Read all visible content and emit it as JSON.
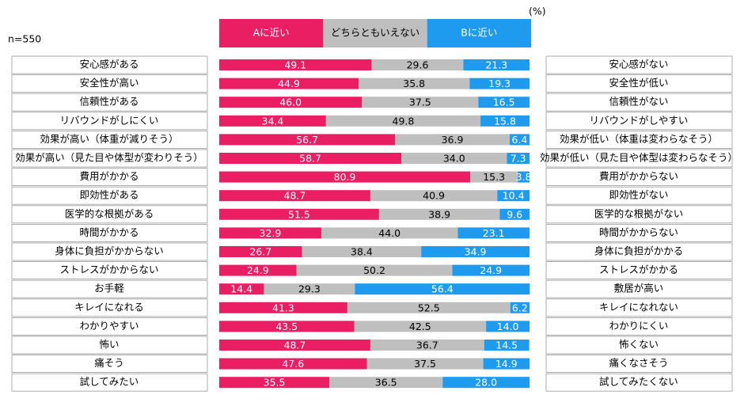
{
  "chart_data": {
    "type": "bar",
    "orientation": "horizontal",
    "stacked": true,
    "note": "(%)",
    "sample": "n=550",
    "categories": [
      "安心感がある",
      "安全性が高い",
      "信頼性がある",
      "リバウンドがしにくい",
      "効果が高い（体重が減りそう）",
      "効果が高い（見た目や体型が変わりそう）",
      "費用がかかる",
      "即効性がある",
      "医学的な根拠がある",
      "時間がかかる",
      "身体に負担がかからない",
      "ストレスがかからない",
      "お手軽",
      "キレイになれる",
      "わかりやすい",
      "怖い",
      "痛そう",
      "試してみたい"
    ],
    "categories_right": [
      "安心感がない",
      "安全性が低い",
      "信頼性がない",
      "リバウンドがしやすい",
      "効果が低い（体重は変わらなそう）",
      "効果が低い（見た目や体型は変わらなそう）",
      "費用がかからない",
      "即効性がない",
      "医学的な根拠がない",
      "時間がかからない",
      "身体に負担がかかる",
      "ストレスがかかる",
      "敷居が高い",
      "キレイになれない",
      "わかりにくい",
      "怖くない",
      "痛くなさそう",
      "試してみたくない"
    ],
    "xlim": [
      0,
      100
    ],
    "series": [
      {
        "name": "Aに近い",
        "color": "#e91e63",
        "label_color": "#ffffff",
        "values": [
          49.1,
          44.9,
          46.0,
          34.4,
          56.7,
          58.7,
          80.9,
          48.7,
          51.5,
          32.9,
          26.7,
          24.9,
          14.4,
          41.3,
          43.5,
          48.7,
          47.6,
          35.5
        ],
        "value_labels": [
          "49.1",
          "44.9",
          "46.0",
          "34.4",
          "56.7",
          "58.7",
          "80.9",
          "48.7",
          "51.5",
          "32.9",
          "26.7",
          "24.9",
          "14.4",
          "41.3",
          "43.5",
          "48.7",
          "47.6",
          "35.5"
        ]
      },
      {
        "name": "どちらともいえない",
        "color": "#bfbfbf",
        "label_color": "#000000",
        "values": [
          29.6,
          35.8,
          37.5,
          49.8,
          36.9,
          34.0,
          15.3,
          40.9,
          38.9,
          44.0,
          38.4,
          50.2,
          29.3,
          52.5,
          42.5,
          36.7,
          37.5,
          36.5
        ],
        "value_labels": [
          "29.6",
          "35.8",
          "37.5",
          "49.8",
          "36.9",
          "34.0",
          "15.3",
          "40.9",
          "38.9",
          "44.0",
          "38.4",
          "50.2",
          "29.3",
          "52.5",
          "42.5",
          "36.7",
          "37.5",
          "36.5"
        ]
      },
      {
        "name": "Bに近い",
        "color": "#1e9bef",
        "label_color": "#ffffff",
        "values": [
          21.3,
          19.3,
          16.5,
          15.8,
          6.4,
          7.3,
          3.8,
          10.4,
          9.6,
          23.1,
          34.9,
          24.9,
          56.4,
          6.2,
          14.0,
          14.5,
          14.9,
          28.0
        ],
        "value_labels": [
          "21.3",
          "19.3",
          "16.5",
          "15.8",
          "6.4",
          "7.3",
          "3.8",
          "10.4",
          "9.6",
          "23.1",
          "34.9",
          "24.9",
          "56.4",
          "6.2",
          "14.0",
          "14.5",
          "14.9",
          "28.0"
        ]
      }
    ]
  }
}
